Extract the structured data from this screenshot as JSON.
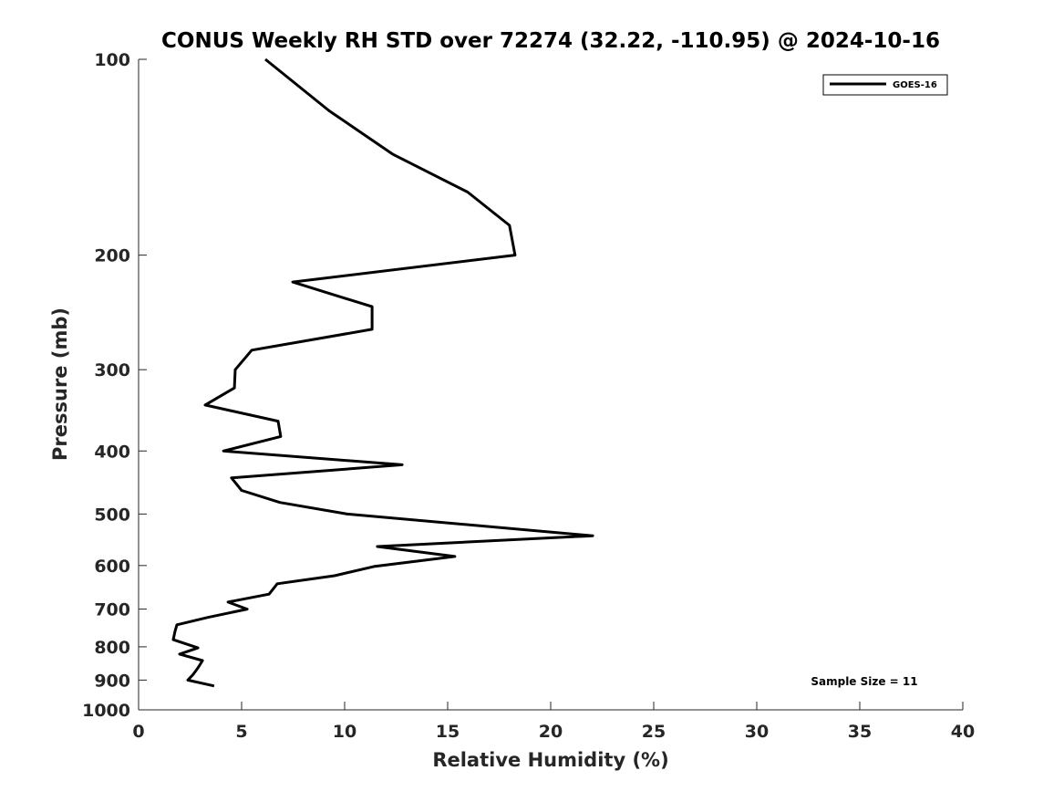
{
  "chart_data": {
    "type": "line",
    "title": "CONUS Weekly RH STD over 72274 (32.22, -110.95) @ 2024-10-16",
    "xlabel": "Relative Humidity (%)",
    "ylabel": "Pressure (mb)",
    "xlim": [
      0,
      40
    ],
    "ylim": [
      100,
      1000
    ],
    "yscale": "log",
    "y_reversed": true,
    "grid": false,
    "legend_placement": "top-right",
    "x_ticks": [
      "0",
      "5",
      "10",
      "15",
      "20",
      "25",
      "30",
      "35",
      "40"
    ],
    "y_ticks": [
      "100",
      "200",
      "300",
      "400",
      "500",
      "600",
      "700",
      "800",
      "900",
      "1000"
    ],
    "annotation": "Sample Size = 11",
    "series": [
      {
        "name": "GOES-16",
        "color": "#000000",
        "x": [
          6.15,
          9.25,
          12.35,
          15.97,
          18.0,
          18.27,
          7.48,
          11.33,
          11.33,
          5.49,
          4.69,
          4.65,
          3.23,
          6.77,
          6.9,
          4.12,
          12.79,
          4.51,
          5.0,
          6.86,
          10.13,
          22.04,
          11.59,
          15.35,
          11.42,
          9.51,
          6.73,
          6.33,
          4.34,
          5.27,
          3.36,
          1.86,
          1.77,
          1.68,
          2.88,
          1.99,
          3.1,
          2.88,
          2.65,
          2.39,
          3.67
        ],
        "y": [
          100,
          120,
          140,
          160,
          180,
          200,
          220,
          240,
          260,
          280,
          300,
          320,
          340,
          360,
          380,
          400,
          420,
          440,
          460,
          480,
          500,
          540,
          561,
          581,
          602,
          622,
          640,
          664,
          683,
          700,
          721,
          740,
          757,
          780,
          803,
          821,
          840,
          862,
          882,
          900,
          919
        ]
      }
    ]
  }
}
